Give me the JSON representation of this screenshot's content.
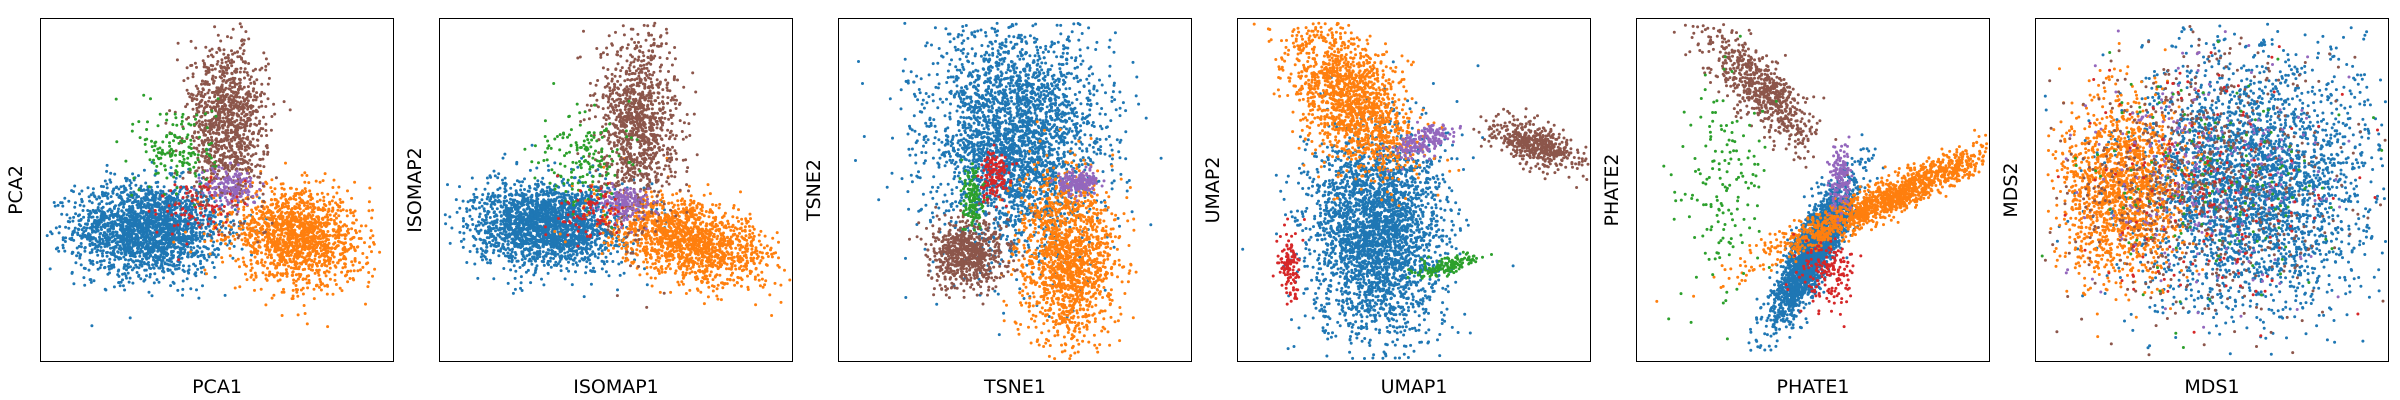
{
  "colors": {
    "blue": "#1f77b4",
    "orange": "#ff7f0e",
    "green": "#2ca02c",
    "red": "#d62728",
    "purple": "#9467bd",
    "brown": "#8c564b"
  },
  "chart_data": [
    {
      "type": "scatter",
      "xlabel": "PCA1",
      "ylabel": "PCA2",
      "xlim": [
        -4,
        4
      ],
      "ylim": [
        -4,
        4
      ],
      "ticks": false,
      "grid": false,
      "clusters": [
        {
          "color": "blue",
          "n": 2200,
          "center": [
            -1.6,
            -0.9
          ],
          "spread": [
            0.85,
            0.55
          ]
        },
        {
          "color": "orange",
          "n": 1500,
          "center": [
            1.8,
            -1.1
          ],
          "spread": [
            0.75,
            0.55
          ],
          "tilt": -0.25
        },
        {
          "color": "brown",
          "n": 1100,
          "center": [
            0.2,
            1.6
          ],
          "spread": [
            0.45,
            0.95
          ]
        },
        {
          "color": "green",
          "n": 160,
          "center": [
            -0.9,
            1.0
          ],
          "spread": [
            0.45,
            0.55
          ]
        },
        {
          "color": "purple",
          "n": 160,
          "center": [
            0.3,
            0.1
          ],
          "spread": [
            0.3,
            0.25
          ]
        },
        {
          "color": "red",
          "n": 80,
          "center": [
            -0.6,
            -0.4
          ],
          "spread": [
            0.45,
            0.35
          ]
        }
      ]
    },
    {
      "type": "scatter",
      "xlabel": "ISOMAP1",
      "ylabel": "ISOMAP2",
      "xlim": [
        -4,
        4
      ],
      "ylim": [
        -4,
        4
      ],
      "ticks": false,
      "grid": false,
      "clusters": [
        {
          "color": "blue",
          "n": 2200,
          "center": [
            -1.6,
            -0.8
          ],
          "spread": [
            0.85,
            0.5
          ]
        },
        {
          "color": "orange",
          "n": 1500,
          "center": [
            1.7,
            -1.2
          ],
          "spread": [
            0.95,
            0.45
          ],
          "tilt": -0.3
        },
        {
          "color": "brown",
          "n": 1100,
          "center": [
            0.5,
            1.6
          ],
          "spread": [
            0.45,
            1.1
          ]
        },
        {
          "color": "green",
          "n": 160,
          "center": [
            -0.8,
            0.8
          ],
          "spread": [
            0.5,
            0.6
          ]
        },
        {
          "color": "purple",
          "n": 160,
          "center": [
            0.2,
            -0.3
          ],
          "spread": [
            0.3,
            0.2
          ]
        },
        {
          "color": "red",
          "n": 80,
          "center": [
            -0.5,
            -0.5
          ],
          "spread": [
            0.45,
            0.3
          ]
        }
      ]
    },
    {
      "type": "scatter",
      "xlabel": "TSNE1",
      "ylabel": "TSNE2",
      "xlim": [
        -4,
        4
      ],
      "ylim": [
        -4,
        4
      ],
      "ticks": false,
      "grid": false,
      "clusters": [
        {
          "color": "blue",
          "n": 3000,
          "center": [
            0.0,
            1.2
          ],
          "spread": [
            1.0,
            1.35
          ]
        },
        {
          "color": "orange",
          "n": 1500,
          "center": [
            1.2,
            -1.6
          ],
          "spread": [
            0.55,
            1.0
          ]
        },
        {
          "color": "brown",
          "n": 700,
          "center": [
            -1.1,
            -1.5
          ],
          "spread": [
            0.45,
            0.4
          ]
        },
        {
          "color": "green",
          "n": 140,
          "center": [
            -1.0,
            -0.2
          ],
          "spread": [
            0.12,
            0.35
          ]
        },
        {
          "color": "red",
          "n": 140,
          "center": [
            -0.5,
            0.4
          ],
          "spread": [
            0.15,
            0.3
          ]
        },
        {
          "color": "purple",
          "n": 200,
          "center": [
            1.4,
            0.2
          ],
          "spread": [
            0.25,
            0.15
          ]
        }
      ]
    },
    {
      "type": "scatter",
      "xlabel": "UMAP1",
      "ylabel": "UMAP2",
      "xlim": [
        -4,
        4
      ],
      "ylim": [
        -4,
        4
      ],
      "ticks": false,
      "grid": false,
      "clusters": [
        {
          "color": "blue",
          "n": 3000,
          "center": [
            -0.9,
            -1.0
          ],
          "spread": [
            0.75,
            1.25
          ]
        },
        {
          "color": "orange",
          "n": 1500,
          "center": [
            -1.5,
            2.2
          ],
          "spread": [
            0.55,
            1.0
          ],
          "tilt": 0.6
        },
        {
          "color": "brown",
          "n": 500,
          "center": [
            2.8,
            1.1
          ],
          "spread": [
            0.55,
            0.22
          ],
          "tilt": -0.35
        },
        {
          "color": "purple",
          "n": 180,
          "center": [
            0.2,
            1.2
          ],
          "spread": [
            0.35,
            0.15
          ],
          "tilt": 0.45
        },
        {
          "color": "green",
          "n": 140,
          "center": [
            0.7,
            -1.8
          ],
          "spread": [
            0.35,
            0.1
          ],
          "tilt": 0.25
        },
        {
          "color": "red",
          "n": 120,
          "center": [
            -2.9,
            -1.8
          ],
          "spread": [
            0.12,
            0.45
          ]
        }
      ]
    },
    {
      "type": "scatter",
      "xlabel": "PHATE1",
      "ylabel": "PHATE2",
      "xlim": [
        -4,
        4
      ],
      "ylim": [
        -4,
        4
      ],
      "ticks": false,
      "grid": false,
      "clusters": [
        {
          "color": "blue",
          "n": 2500,
          "center": [
            0.0,
            -1.4
          ],
          "spread": [
            0.9,
            0.22
          ],
          "tilt": 1.1
        },
        {
          "color": "orange",
          "n": 1500,
          "center": [
            1.7,
            -0.2
          ],
          "spread": [
            1.5,
            0.2
          ],
          "tilt": 0.45
        },
        {
          "color": "brown",
          "n": 700,
          "center": [
            -1.2,
            2.4
          ],
          "spread": [
            0.9,
            0.3
          ],
          "tilt": -0.85
        },
        {
          "color": "green",
          "n": 160,
          "center": [
            -2.1,
            0.3
          ],
          "spread": [
            0.5,
            1.4
          ]
        },
        {
          "color": "purple",
          "n": 160,
          "center": [
            0.6,
            0.3
          ],
          "spread": [
            0.12,
            0.45
          ]
        },
        {
          "color": "red",
          "n": 160,
          "center": [
            0.3,
            -2.0
          ],
          "spread": [
            0.35,
            0.4
          ]
        }
      ]
    },
    {
      "type": "scatter",
      "xlabel": "MDS1",
      "ylabel": "MDS2",
      "xlim": [
        -4,
        4
      ],
      "ylim": [
        -4,
        4
      ],
      "ticks": false,
      "grid": false,
      "clusters": [
        {
          "color": "blue",
          "n": 3000,
          "center": [
            0.9,
            0.2
          ],
          "spread": [
            1.4,
            1.5
          ]
        },
        {
          "color": "orange",
          "n": 1500,
          "center": [
            -2.1,
            0.1
          ],
          "spread": [
            0.7,
            1.05
          ]
        },
        {
          "color": "brown",
          "n": 700,
          "center": [
            -0.3,
            0.3
          ],
          "spread": [
            1.5,
            1.5
          ]
        },
        {
          "color": "purple",
          "n": 250,
          "center": [
            -0.2,
            0.3
          ],
          "spread": [
            1.4,
            1.4
          ]
        },
        {
          "color": "red",
          "n": 180,
          "center": [
            -0.2,
            0.0
          ],
          "spread": [
            1.5,
            1.5
          ]
        },
        {
          "color": "green",
          "n": 150,
          "center": [
            0.0,
            0.2
          ],
          "spread": [
            1.5,
            1.5
          ]
        }
      ]
    }
  ]
}
